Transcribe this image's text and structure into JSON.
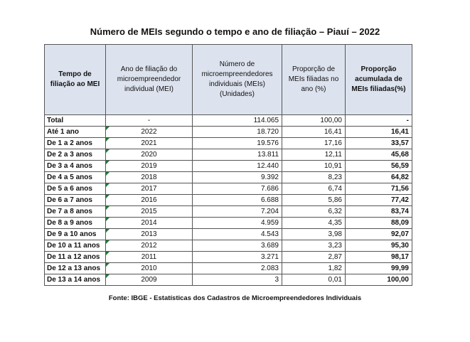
{
  "title": "Número de MEIs segundo o tempo e ano de filiação – Piauí – 2022",
  "columns": [
    "Tempo de filiação ao MEI",
    "Ano de filiação do microempreendedor individual (MEI)",
    "Número de microempreendedores individuais (MEIs) (Unidades)",
    "Proporção de MEIs filiadas no ano (%)",
    "Proporção acumulada de MEIs filiadas(%)"
  ],
  "rows": [
    [
      "Total",
      "-",
      "114.065",
      "100,00",
      "-"
    ],
    [
      "Até 1 ano",
      "2022",
      "18.720",
      "16,41",
      "16,41"
    ],
    [
      "De 1 a 2 anos",
      "2021",
      "19.576",
      "17,16",
      "33,57"
    ],
    [
      "De 2 a 3 anos",
      "2020",
      "13.811",
      "12,11",
      "45,68"
    ],
    [
      "De 3 a 4 anos",
      "2019",
      "12.440",
      "10,91",
      "56,59"
    ],
    [
      "De 4 a 5 anos",
      "2018",
      "9.392",
      "8,23",
      "64,82"
    ],
    [
      "De 5 a 6 anos",
      "2017",
      "7.686",
      "6,74",
      "71,56"
    ],
    [
      "De 6 a 7 anos",
      "2016",
      "6.688",
      "5,86",
      "77,42"
    ],
    [
      "De 7 a 8 anos",
      "2015",
      "7.204",
      "6,32",
      "83,74"
    ],
    [
      "De 8 a 9 anos",
      "2014",
      "4.959",
      "4,35",
      "88,09"
    ],
    [
      "De 9 a 10 anos",
      "2013",
      "4.543",
      "3,98",
      "92,07"
    ],
    [
      "De 10 a 11 anos",
      "2012",
      "3.689",
      "3,23",
      "95,30"
    ],
    [
      "De 11 a 12 anos",
      "2011",
      "3.271",
      "2,87",
      "98,17"
    ],
    [
      "De 12 a 13 anos",
      "2010",
      "2.083",
      "1,82",
      "99,99"
    ],
    [
      "De 13 a 14 anos",
      "2009",
      "3",
      "0,01",
      "100,00"
    ]
  ],
  "source": "Fonte: IBGE - Estatísticas dos Cadastros de Microempreendedores Individuais",
  "colors": {
    "header_bg": "#dde3ee",
    "border": "#555555",
    "cell_marker": "#1e7a36"
  }
}
